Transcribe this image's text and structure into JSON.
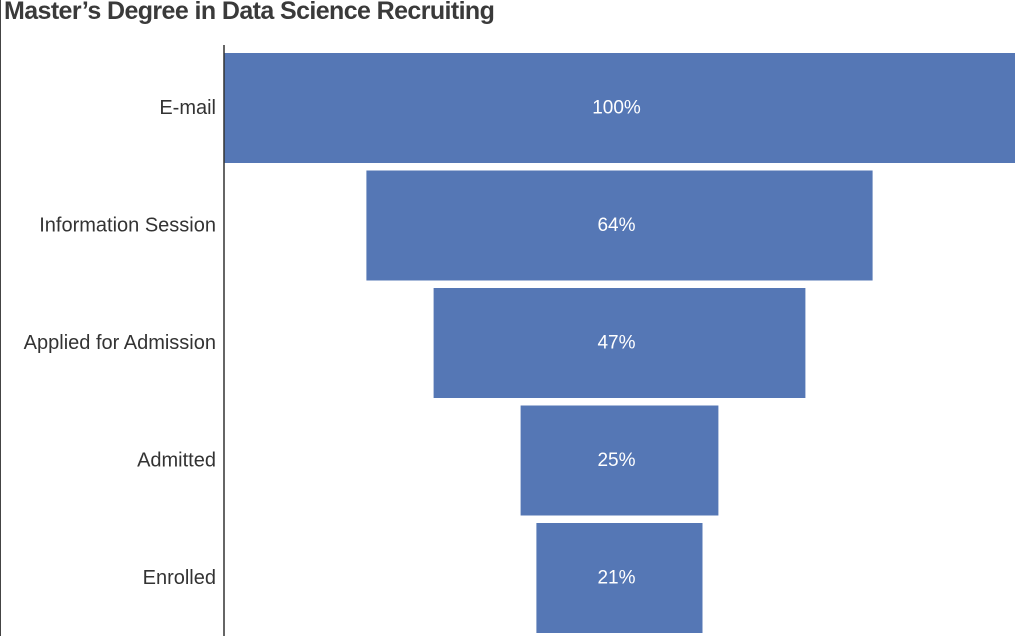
{
  "chart_data": {
    "type": "bar",
    "subtype": "funnel",
    "title": "Master’s Degree in Data Science Recruiting",
    "xlabel": "",
    "ylabel": "",
    "categories": [
      "E-mail",
      "Information Session",
      "Applied for Admission",
      "Admitted",
      "Enrolled"
    ],
    "values": [
      100,
      64,
      47,
      25,
      21
    ],
    "value_labels": [
      "100%",
      "64%",
      "47%",
      "25%",
      "21%"
    ],
    "xlim": [
      0,
      100
    ],
    "grid": false,
    "legend": "none",
    "bar_color": "#5577b5"
  }
}
